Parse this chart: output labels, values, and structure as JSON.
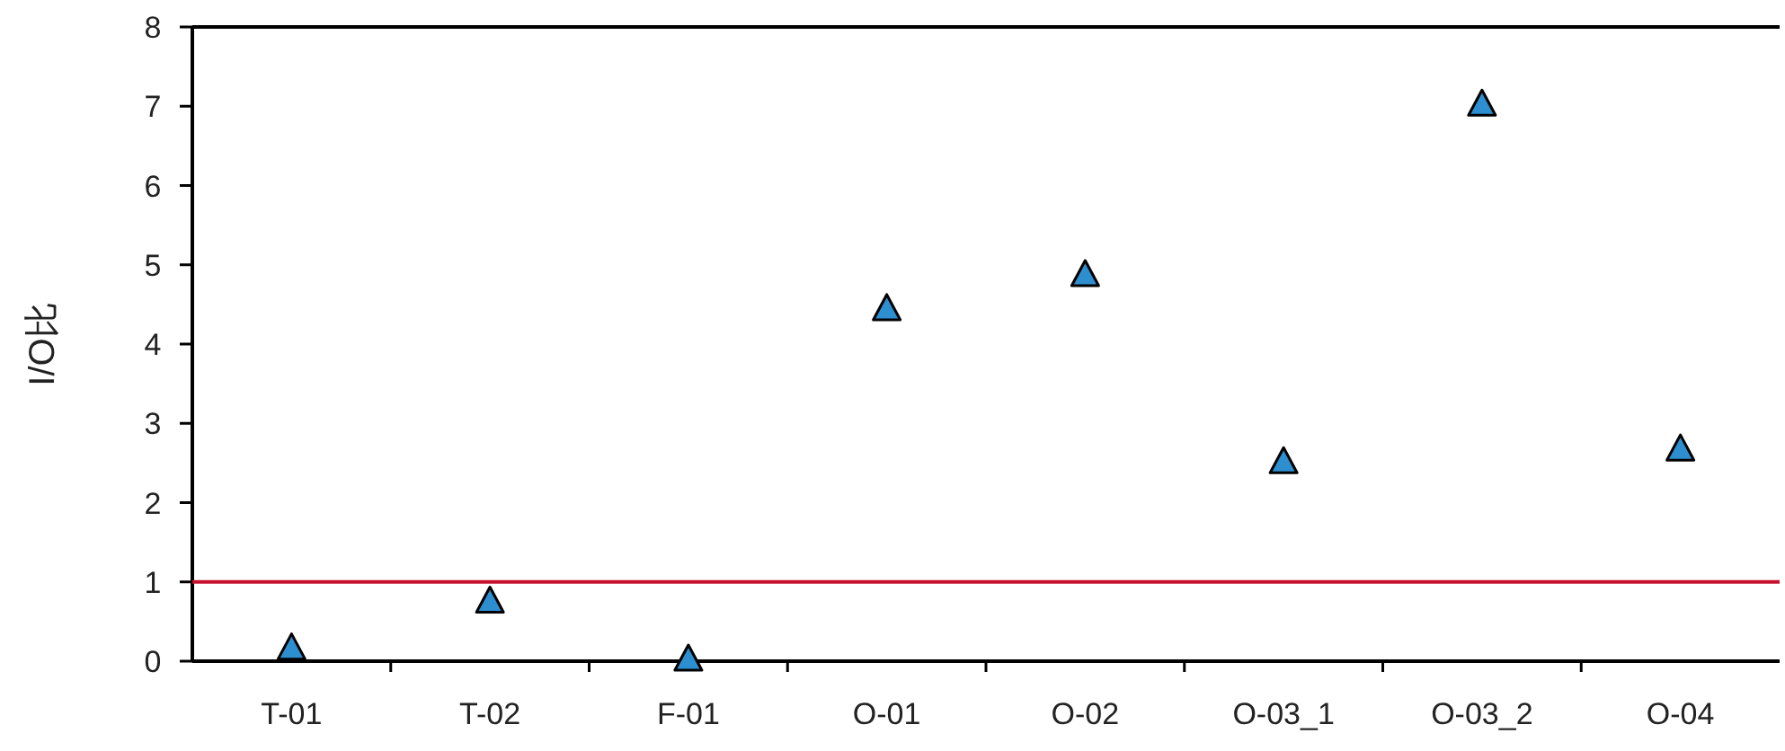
{
  "chart_data": {
    "type": "scatter",
    "ylabel": "I/O比",
    "categories": [
      "T-01",
      "T-02",
      "F-01",
      "O-01",
      "O-02",
      "O-03_1",
      "O-03_2",
      "O-04"
    ],
    "values": [
      0.14,
      0.73,
      0.0,
      4.42,
      4.85,
      2.49,
      7.0,
      2.65
    ],
    "color": "#2e8fd0",
    "marker": "triangle",
    "ylim": [
      0,
      8
    ],
    "yticks": [
      0,
      1,
      2,
      3,
      4,
      5,
      6,
      7,
      8
    ],
    "ref_lines": [
      {
        "axis": "y",
        "value": 1,
        "color": "#c8102e"
      }
    ]
  }
}
